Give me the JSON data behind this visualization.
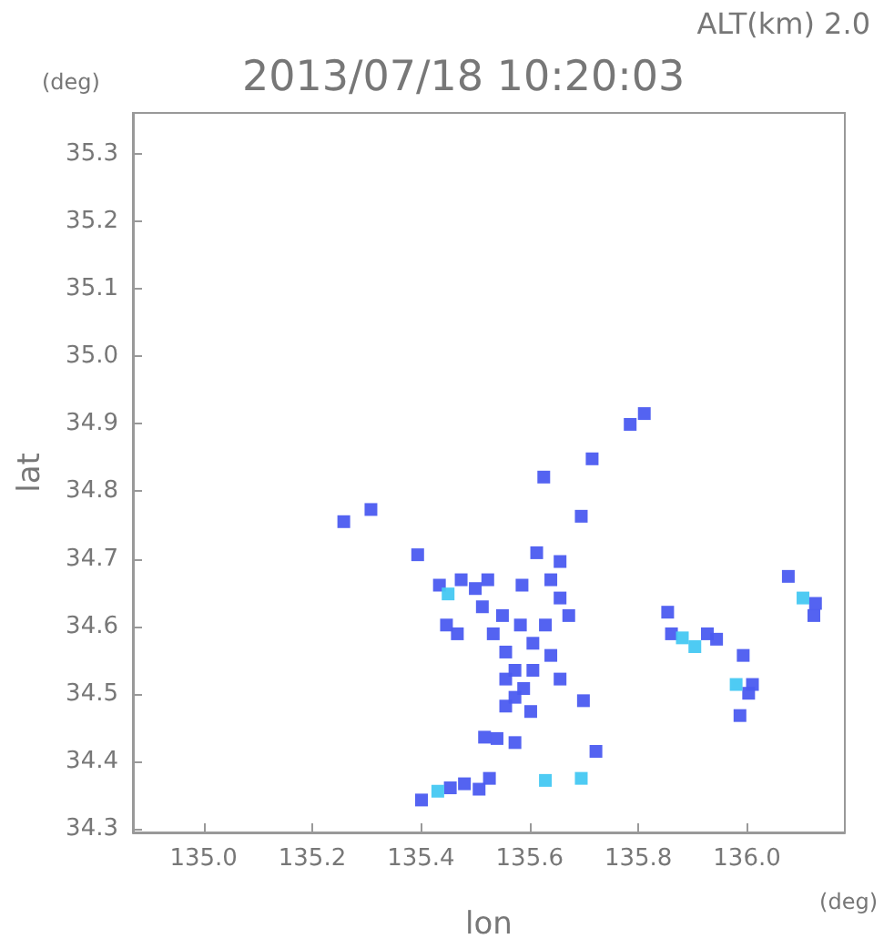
{
  "chart_data": {
    "type": "scatter",
    "title": "2013/07/18 10:20:03",
    "subtitle": "ALT(km) 2.0",
    "xlabel": "lon",
    "ylabel": "lat",
    "annotations": [
      "(deg)",
      "(deg)"
    ],
    "xlim": [
      134.87,
      136.18
    ],
    "xticks": [
      {
        "value": 135,
        "label": "135.0"
      },
      135.2,
      135.4,
      135.6,
      135.8,
      {
        "value": 136,
        "label": "136.0"
      }
    ],
    "ylim": [
      34.295,
      35.36
    ],
    "yticks": [
      34.3,
      34.4,
      34.5,
      34.6,
      34.7,
      34.8,
      34.9,
      {
        "value": 35,
        "label": "35.0"
      },
      35.1,
      35.2,
      35.3
    ],
    "grid": false,
    "marker": "square",
    "series": [
      {
        "color": "#4b5bf0",
        "x": [
          135.55,
          135.5,
          135.523,
          135.586,
          135.639,
          135.656,
          135.613,
          135.656,
          135.672,
          135.629,
          135.606,
          135.583,
          135.513,
          135.533,
          135.556,
          135.556,
          135.573,
          135.589,
          135.573,
          135.556,
          135.606,
          135.639,
          135.602,
          135.699,
          135.656,
          135.434,
          135.467,
          135.447,
          135.474,
          135.54,
          135.573,
          135.517,
          135.507,
          135.526,
          135.48,
          135.454,
          135.401,
          135.722,
          135.785,
          135.811,
          135.715,
          135.626,
          135.258,
          135.308,
          135.695,
          135.394,
          135.854,
          135.861,
          135.927,
          135.944,
          135.993,
          136.01,
          136.003,
          135.987,
          136.076,
          136.126,
          136.123
        ],
        "values": [
          34.616,
          34.656,
          34.669,
          34.661,
          34.669,
          34.696,
          34.709,
          34.642,
          34.616,
          34.602,
          34.575,
          34.602,
          34.629,
          34.589,
          34.562,
          34.522,
          34.535,
          34.508,
          34.495,
          34.482,
          34.535,
          34.557,
          34.474,
          34.49,
          34.522,
          34.661,
          34.589,
          34.602,
          34.669,
          34.434,
          34.428,
          34.436,
          34.359,
          34.375,
          34.367,
          34.361,
          34.343,
          34.415,
          34.899,
          34.915,
          34.848,
          34.821,
          34.755,
          34.773,
          34.763,
          34.706,
          34.621,
          34.589,
          34.589,
          34.581,
          34.557,
          34.514,
          34.501,
          34.468,
          34.674,
          34.634,
          34.616
        ]
      },
      {
        "color": "#45c8f2",
        "x": [
          135.45,
          135.431,
          135.629,
          135.695,
          135.881,
          135.904,
          135.98,
          136.103
        ],
        "values": [
          34.648,
          34.356,
          34.372,
          34.375,
          34.583,
          34.57,
          34.514,
          34.642
        ]
      }
    ]
  }
}
